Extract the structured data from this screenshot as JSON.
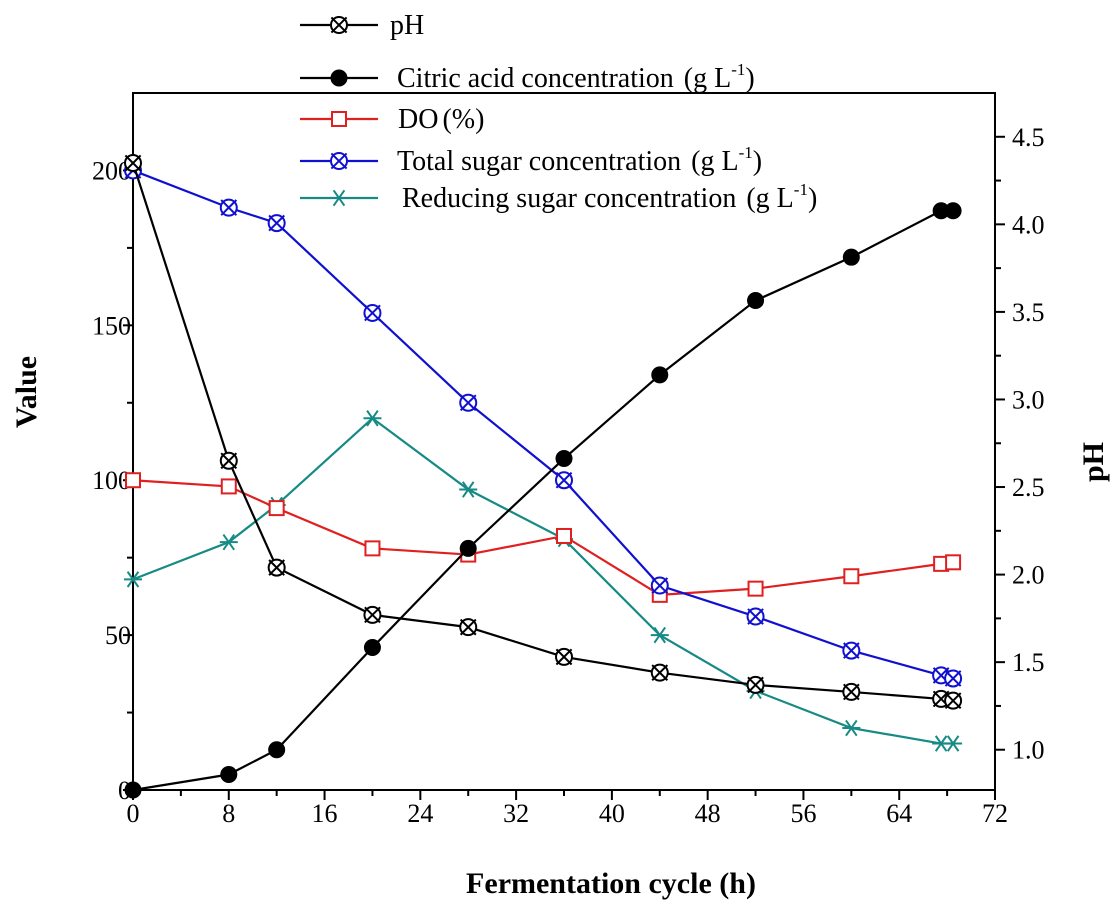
{
  "chart_data": {
    "type": "line",
    "xlabel": "Fermentation cycle (h)",
    "ylabel_left": "Value",
    "ylabel_right": "pH",
    "xlim": [
      0,
      72
    ],
    "ylim_left": [
      0,
      225
    ],
    "ylim_right": [
      0.77,
      4.75
    ],
    "x_ticks": [
      "0",
      "8",
      "16",
      "24",
      "32",
      "40",
      "48",
      "56",
      "64",
      "72"
    ],
    "y_left_ticks": [
      "0",
      "50",
      "100",
      "150",
      "200"
    ],
    "y_right_ticks": [
      "1.0",
      "1.5",
      "2.0",
      "2.5",
      "3.0",
      "3.5",
      "4.0",
      "4.5"
    ],
    "series": [
      {
        "key": "ph",
        "name": "pH",
        "axis": "right",
        "color": "#000000",
        "marker": "crossed-circle",
        "x": [
          0,
          8,
          12,
          20,
          28,
          36,
          44,
          52,
          60,
          67.5,
          68.5
        ],
        "y": [
          4.35,
          2.65,
          2.04,
          1.77,
          1.7,
          1.53,
          1.44,
          1.37,
          1.33,
          1.29,
          1.28
        ]
      },
      {
        "key": "citric",
        "name": "Citric acid concentration",
        "unit": "(g L",
        "sup": "-1",
        "close": ")",
        "axis": "left",
        "color": "#000000",
        "marker": "filled-circle",
        "x": [
          0,
          8,
          12,
          20,
          28,
          36,
          44,
          52,
          60,
          67.5,
          68.5
        ],
        "y": [
          0,
          5,
          13,
          46,
          78,
          107,
          134,
          158,
          172,
          187,
          187
        ]
      },
      {
        "key": "do",
        "name": "DO",
        "unit": "(%)",
        "axis": "left",
        "color": "#e02020",
        "marker": "open-square",
        "x": [
          0,
          8,
          12,
          20,
          28,
          36,
          44,
          52,
          60,
          67.5,
          68.5
        ],
        "y": [
          100,
          98,
          91,
          78,
          76,
          82,
          63,
          65,
          69,
          73,
          73.5
        ]
      },
      {
        "key": "total",
        "name": "Total sugar concentration",
        "unit": "(g L",
        "sup": "-1",
        "close": ")",
        "axis": "left",
        "color": "#1010d0",
        "marker": "crossed-circle",
        "x": [
          0,
          8,
          12,
          20,
          28,
          36,
          44,
          52,
          60,
          67.5,
          68.5
        ],
        "y": [
          200,
          188,
          183,
          154,
          125,
          100,
          66,
          56,
          45,
          37,
          36
        ]
      },
      {
        "key": "reducing",
        "name": "Reducing sugar concentration",
        "unit": "(g L",
        "sup": "-1",
        "close": ")",
        "axis": "left",
        "color": "#178a85",
        "marker": "asterisk",
        "x": [
          0,
          8,
          12,
          20,
          28,
          36,
          44,
          52,
          60,
          67.5,
          68.5
        ],
        "y": [
          68,
          80,
          92,
          120,
          97,
          81,
          50,
          32,
          20,
          15,
          15
        ]
      }
    ]
  }
}
